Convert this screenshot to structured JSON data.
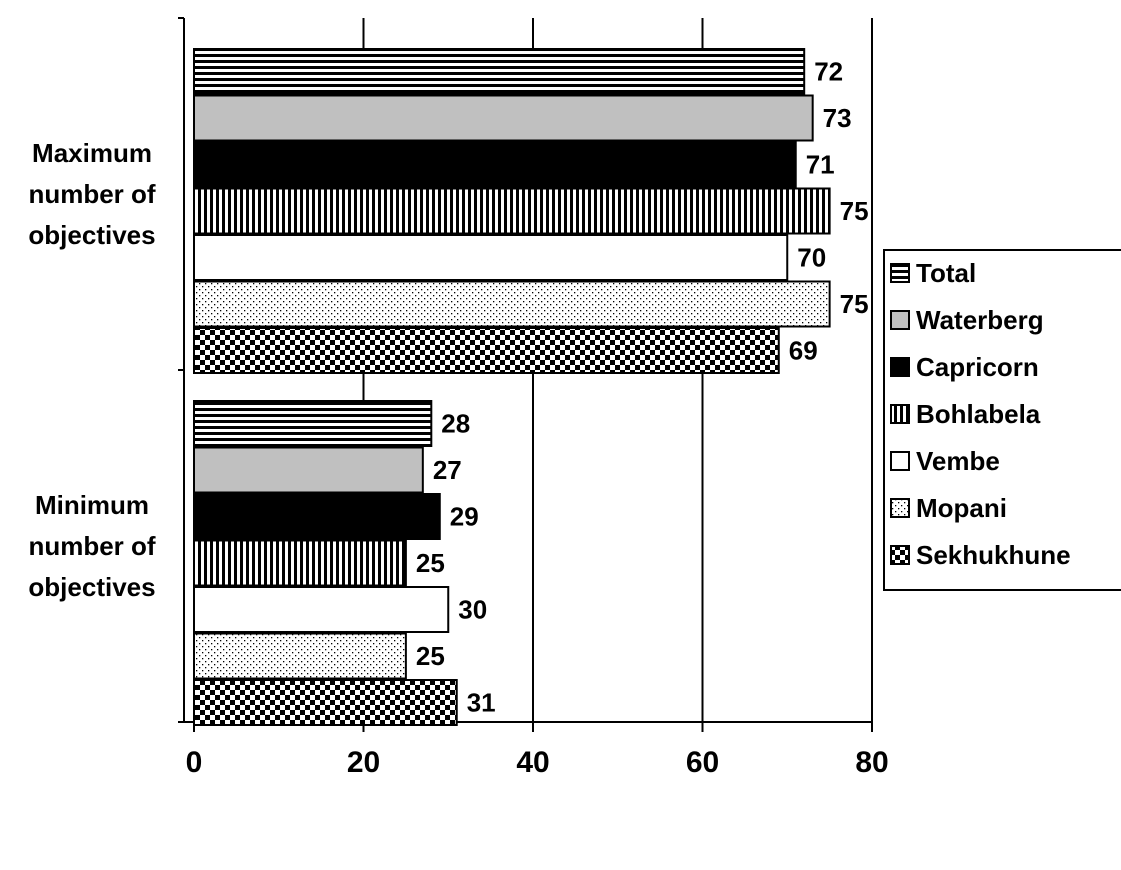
{
  "chart_data": {
    "type": "bar",
    "orientation": "horizontal",
    "categories": [
      [
        "Maximum",
        "number of",
        "objectives"
      ],
      [
        "Minimum",
        "number of",
        "objectives"
      ]
    ],
    "series": [
      {
        "name": "Total",
        "values": [
          72,
          28
        ],
        "pattern": "hstripe"
      },
      {
        "name": "Waterberg",
        "values": [
          73,
          27
        ],
        "pattern": "gray"
      },
      {
        "name": "Capricorn",
        "values": [
          71,
          29
        ],
        "pattern": "black"
      },
      {
        "name": "Bohlabela",
        "values": [
          75,
          25
        ],
        "pattern": "vstripe"
      },
      {
        "name": "Vembe",
        "values": [
          70,
          30
        ],
        "pattern": "white"
      },
      {
        "name": "Mopani",
        "values": [
          75,
          25
        ],
        "pattern": "dots"
      },
      {
        "name": "Sekhukhune",
        "values": [
          69,
          31
        ],
        "pattern": "checker"
      }
    ],
    "xlim": [
      0,
      80
    ],
    "xticks": [
      0,
      20,
      40,
      60,
      80
    ],
    "grid": "vertical",
    "legend": "right",
    "colors": {
      "gray": "#c0c0c0",
      "black": "#000000",
      "white": "#ffffff"
    }
  }
}
